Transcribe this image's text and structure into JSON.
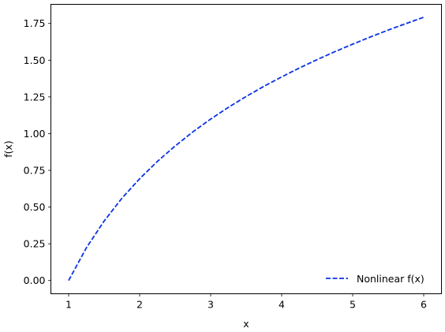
{
  "chart_data": {
    "type": "line",
    "title": "",
    "xlabel": "x",
    "ylabel": "f(x)",
    "xlim": [
      0.75,
      6.25
    ],
    "ylim": [
      -0.09,
      1.88
    ],
    "xticks": [
      1,
      2,
      3,
      4,
      5,
      6
    ],
    "yticks": [
      0.0,
      0.25,
      0.5,
      0.75,
      1.0,
      1.25,
      1.5,
      1.75
    ],
    "xtick_labels": [
      "1",
      "2",
      "3",
      "4",
      "5",
      "6"
    ],
    "ytick_labels": [
      "0.00",
      "0.25",
      "0.50",
      "0.75",
      "1.00",
      "1.25",
      "1.50",
      "1.75"
    ],
    "grid": false,
    "legend_position": "lower-right",
    "series": [
      {
        "name": "Nonlinear f(x)",
        "color": "#0a32e6",
        "line_style": "dashed",
        "x": [
          1.0,
          1.25,
          1.5,
          1.75,
          2.0,
          2.25,
          2.5,
          2.75,
          3.0,
          3.25,
          3.5,
          3.75,
          4.0,
          4.25,
          4.5,
          4.75,
          5.0,
          5.25,
          5.5,
          5.75,
          6.0
        ],
        "y": [
          0.0,
          0.223,
          0.405,
          0.56,
          0.693,
          0.811,
          0.916,
          1.012,
          1.099,
          1.179,
          1.253,
          1.322,
          1.386,
          1.447,
          1.504,
          1.558,
          1.609,
          1.658,
          1.705,
          1.749,
          1.792
        ]
      }
    ]
  }
}
